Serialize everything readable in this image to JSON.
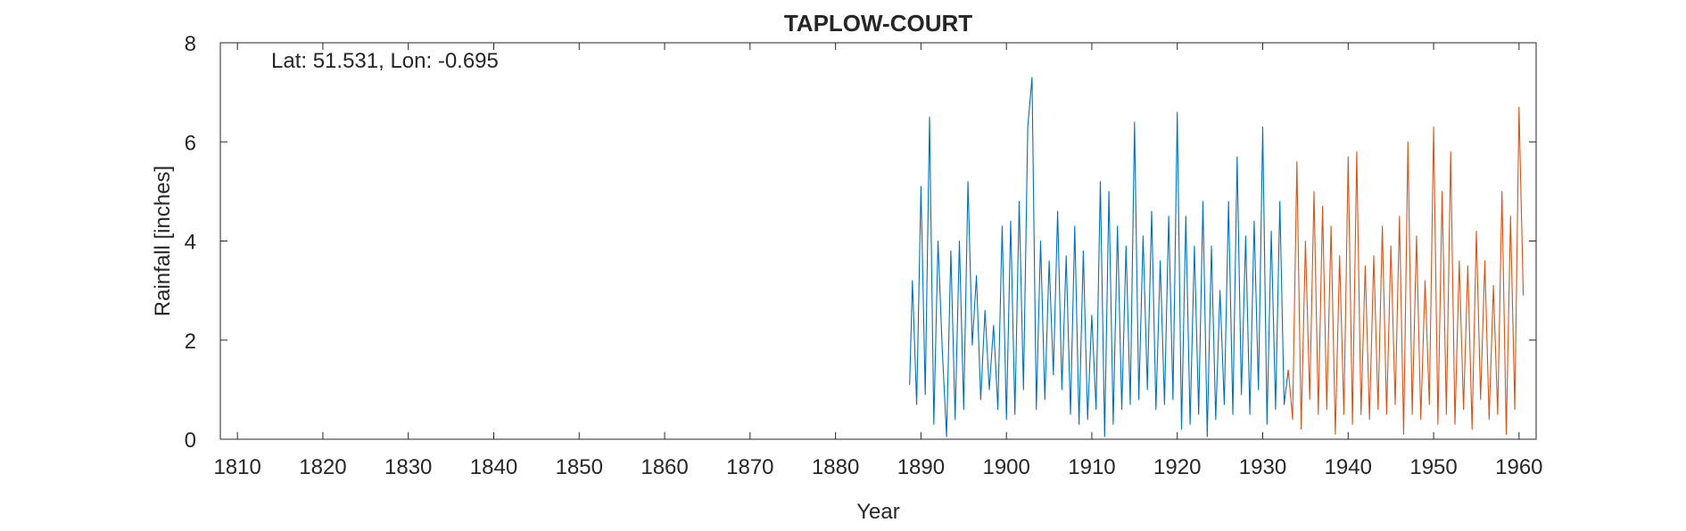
{
  "chart_data": {
    "type": "line",
    "title": "TAPLOW-COURT",
    "annotation": "Lat: 51.531, Lon: -0.695",
    "xlabel": "Year",
    "ylabel": "Rainfall [inches]",
    "xlim": [
      1808,
      1962
    ],
    "ylim": [
      0,
      8
    ],
    "xticks": [
      "1810",
      "1820",
      "1830",
      "1840",
      "1850",
      "1860",
      "1870",
      "1880",
      "1890",
      "1900",
      "1910",
      "1920",
      "1930",
      "1940",
      "1950",
      "1960"
    ],
    "yticks": [
      "0",
      "2",
      "4",
      "6",
      "8"
    ],
    "grid": false,
    "legend": "none",
    "series": [
      {
        "color": "#0072BD",
        "x": [
          1888.67,
          1889,
          1889.5,
          1890,
          1890.5,
          1891,
          1891.5,
          1892,
          1892.5,
          1893,
          1893.5,
          1894,
          1894.5,
          1895,
          1895.5,
          1896,
          1896.5,
          1897,
          1897.5,
          1898,
          1898.5,
          1899,
          1899.5,
          1900,
          1900.5,
          1901,
          1901.5,
          1902,
          1902.5,
          1903,
          1903.5,
          1904,
          1904.5,
          1905,
          1905.5,
          1906,
          1906.5,
          1907,
          1907.5,
          1908,
          1908.5,
          1909,
          1909.5,
          1910,
          1910.5,
          1911,
          1911.5,
          1912,
          1912.5,
          1913,
          1913.5,
          1914,
          1914.5,
          1915,
          1915.5,
          1916,
          1916.5,
          1917,
          1917.5,
          1918,
          1918.5,
          1919,
          1919.5,
          1920,
          1920.5,
          1921,
          1921.5,
          1922,
          1922.5,
          1923,
          1923.5,
          1924,
          1924.5,
          1925,
          1925.5,
          1926,
          1926.5,
          1927,
          1927.5,
          1928,
          1928.5,
          1929,
          1929.5,
          1930,
          1930.5,
          1931,
          1931.5,
          1932,
          1932.5,
          1933
        ],
        "y": [
          1.1,
          3.2,
          0.7,
          5.1,
          0.9,
          6.5,
          0.3,
          4.0,
          1.8,
          0.05,
          3.8,
          0.4,
          4.0,
          0.6,
          5.2,
          1.9,
          3.3,
          0.8,
          2.6,
          1.0,
          2.3,
          0.6,
          4.3,
          0.4,
          4.4,
          0.5,
          4.8,
          1.0,
          6.3,
          7.3,
          0.6,
          4.0,
          0.8,
          3.6,
          1.3,
          4.6,
          1.0,
          3.7,
          0.5,
          4.3,
          0.3,
          3.8,
          0.4,
          2.5,
          0.6,
          5.2,
          0.05,
          5.0,
          0.3,
          4.3,
          0.6,
          3.9,
          0.7,
          6.4,
          0.8,
          4.1,
          1.0,
          4.6,
          0.6,
          3.6,
          0.7,
          4.5,
          0.8,
          6.6,
          0.2,
          4.5,
          0.3,
          3.9,
          0.5,
          4.8,
          0.05,
          3.9,
          0.4,
          3.0,
          0.7,
          4.8,
          0.5,
          5.7,
          0.9,
          4.1,
          0.5,
          4.4,
          1.0,
          6.3,
          0.3,
          4.2,
          0.6,
          4.8,
          0.7,
          1.4
        ]
      },
      {
        "color": "#D95319",
        "x": [
          1933,
          1933.5,
          1934,
          1934.5,
          1935,
          1935.5,
          1936,
          1936.5,
          1937,
          1937.5,
          1938,
          1938.5,
          1939,
          1939.5,
          1940,
          1940.5,
          1941,
          1941.5,
          1942,
          1942.5,
          1943,
          1943.5,
          1944,
          1944.5,
          1945,
          1945.5,
          1946,
          1946.5,
          1947,
          1947.5,
          1948,
          1948.5,
          1949,
          1949.5,
          1950,
          1950.5,
          1951,
          1951.5,
          1952,
          1952.5,
          1953,
          1953.5,
          1954,
          1954.5,
          1955,
          1955.5,
          1956,
          1956.5,
          1957,
          1957.5,
          1958,
          1958.5,
          1959,
          1959.5,
          1960,
          1960.5
        ],
        "y": [
          1.4,
          0.4,
          5.6,
          0.2,
          4.0,
          0.8,
          5.0,
          0.5,
          4.7,
          0.6,
          4.3,
          0.1,
          3.7,
          0.5,
          5.7,
          0.3,
          5.8,
          0.5,
          3.5,
          0.4,
          3.7,
          0.6,
          4.3,
          0.5,
          3.9,
          0.7,
          4.5,
          0.1,
          6.0,
          0.5,
          4.1,
          0.4,
          3.2,
          0.7,
          6.3,
          0.3,
          5.0,
          0.5,
          5.8,
          0.3,
          3.6,
          0.6,
          3.5,
          0.2,
          4.2,
          0.8,
          3.6,
          0.4,
          3.1,
          0.5,
          5.0,
          0.1,
          4.5,
          0.6,
          6.7,
          2.9
        ]
      }
    ]
  }
}
